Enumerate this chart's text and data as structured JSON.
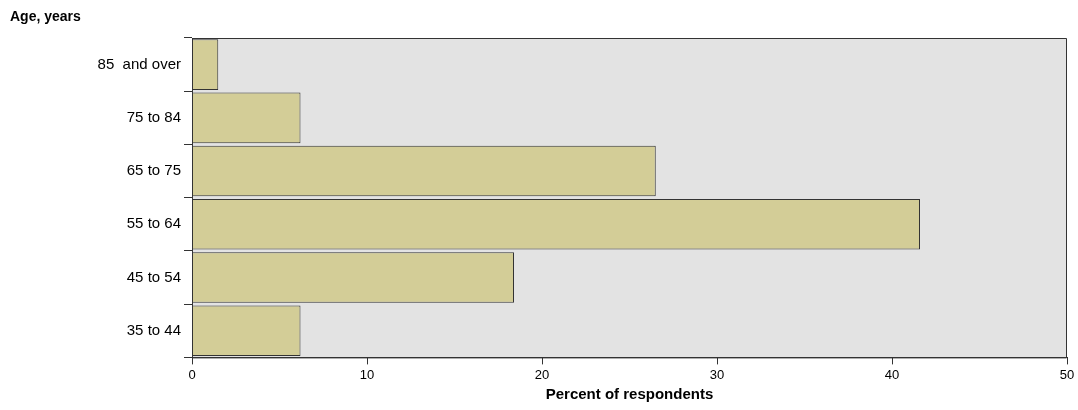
{
  "chart_data": {
    "type": "bar",
    "orientation": "horizontal",
    "ylabel": "Age, years",
    "xlabel": "Percent of respondents",
    "categories": [
      "85  and over",
      "75 to 84",
      "65 to 75",
      "55 to 64",
      "45 to 54",
      "35 to 44"
    ],
    "values": [
      1.5,
      6.2,
      26.5,
      41.6,
      18.4,
      6.2
    ],
    "color": "#d3cd97",
    "xlim": [
      0,
      50
    ],
    "xticks": [
      0,
      10,
      20,
      30,
      40,
      50
    ],
    "grid": false,
    "legend": false
  }
}
